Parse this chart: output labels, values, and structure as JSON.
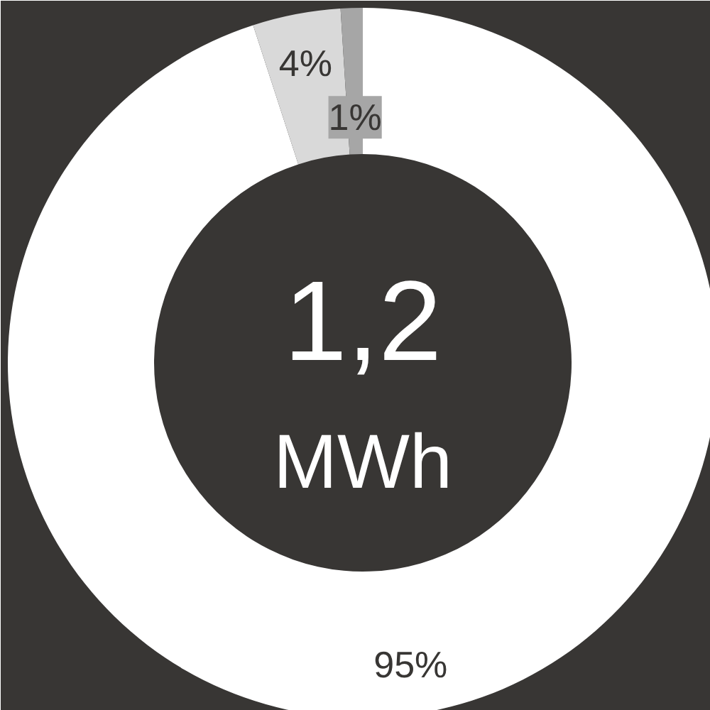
{
  "chart_data": {
    "type": "donut",
    "categories": [
      null,
      null,
      null
    ],
    "values": [
      95,
      4,
      1
    ],
    "colors": [
      "#ffffff",
      "#d9d9d9",
      "#a6a6a6"
    ],
    "value_labels": [
      "95%",
      "4%",
      "1%"
    ],
    "annotations": [
      "1,2",
      "MWh"
    ]
  }
}
